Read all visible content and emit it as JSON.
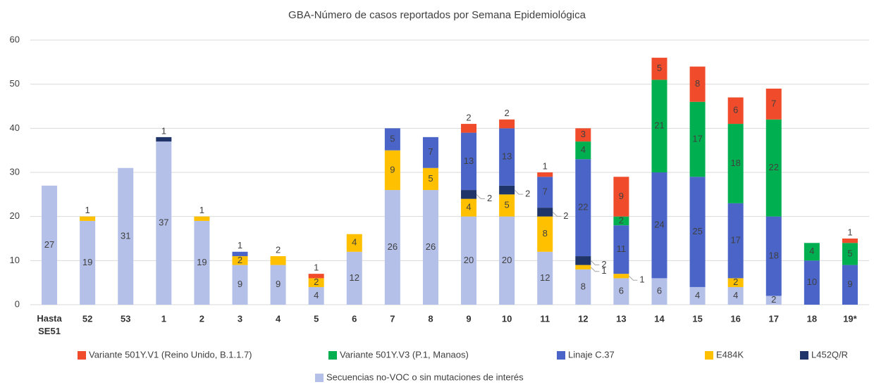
{
  "chart_data": {
    "type": "stacked_bar",
    "title": "GBA-Número de casos reportados por Semana Epidemiológica",
    "categories": [
      "Hasta SE51",
      "52",
      "53",
      "1",
      "2",
      "3",
      "4",
      "5",
      "6",
      "7",
      "8",
      "9",
      "10",
      "11",
      "12",
      "13",
      "14",
      "15",
      "16",
      "17",
      "18",
      "19*"
    ],
    "series": [
      {
        "name": "Secuencias no-VOC o sin mutaciones de interés",
        "color": "#b4c0e8",
        "values": [
          27,
          19,
          31,
          37,
          19,
          9,
          9,
          4,
          12,
          26,
          26,
          20,
          20,
          12,
          8,
          6,
          6,
          4,
          4,
          2,
          0,
          0
        ]
      },
      {
        "name": "E484K",
        "color": "#ffc000",
        "values": [
          0,
          1,
          0,
          0,
          1,
          2,
          2,
          2,
          4,
          9,
          5,
          4,
          5,
          8,
          1,
          1,
          0,
          0,
          2,
          0,
          0,
          0
        ]
      },
      {
        "name": "L452Q/R",
        "color": "#1f3468",
        "values": [
          0,
          0,
          0,
          1,
          0,
          0,
          0,
          0,
          0,
          0,
          0,
          2,
          2,
          2,
          2,
          0,
          0,
          0,
          0,
          0,
          0,
          0
        ]
      },
      {
        "name": "Linaje C.37",
        "color": "#4a64c8",
        "values": [
          0,
          0,
          0,
          0,
          0,
          1,
          0,
          0,
          0,
          5,
          7,
          13,
          13,
          7,
          22,
          11,
          24,
          25,
          17,
          18,
          10,
          9
        ]
      },
      {
        "name": "Variante 501Y.V3 (P.1, Manaos)",
        "color": "#00b050",
        "values": [
          0,
          0,
          0,
          0,
          0,
          0,
          0,
          0,
          0,
          0,
          0,
          0,
          0,
          0,
          4,
          2,
          21,
          17,
          18,
          22,
          4,
          5
        ]
      },
      {
        "name": "Variante 501Y.V1 (Reino Unido, B.1.1.7)",
        "color": "#f04b2b",
        "values": [
          0,
          0,
          0,
          0,
          0,
          0,
          0,
          1,
          0,
          0,
          0,
          2,
          2,
          1,
          3,
          9,
          5,
          8,
          6,
          7,
          0,
          1
        ]
      }
    ],
    "ylim": [
      0,
      60
    ],
    "yticks": [
      0,
      10,
      20,
      30,
      40,
      50,
      60
    ],
    "grid": true
  }
}
